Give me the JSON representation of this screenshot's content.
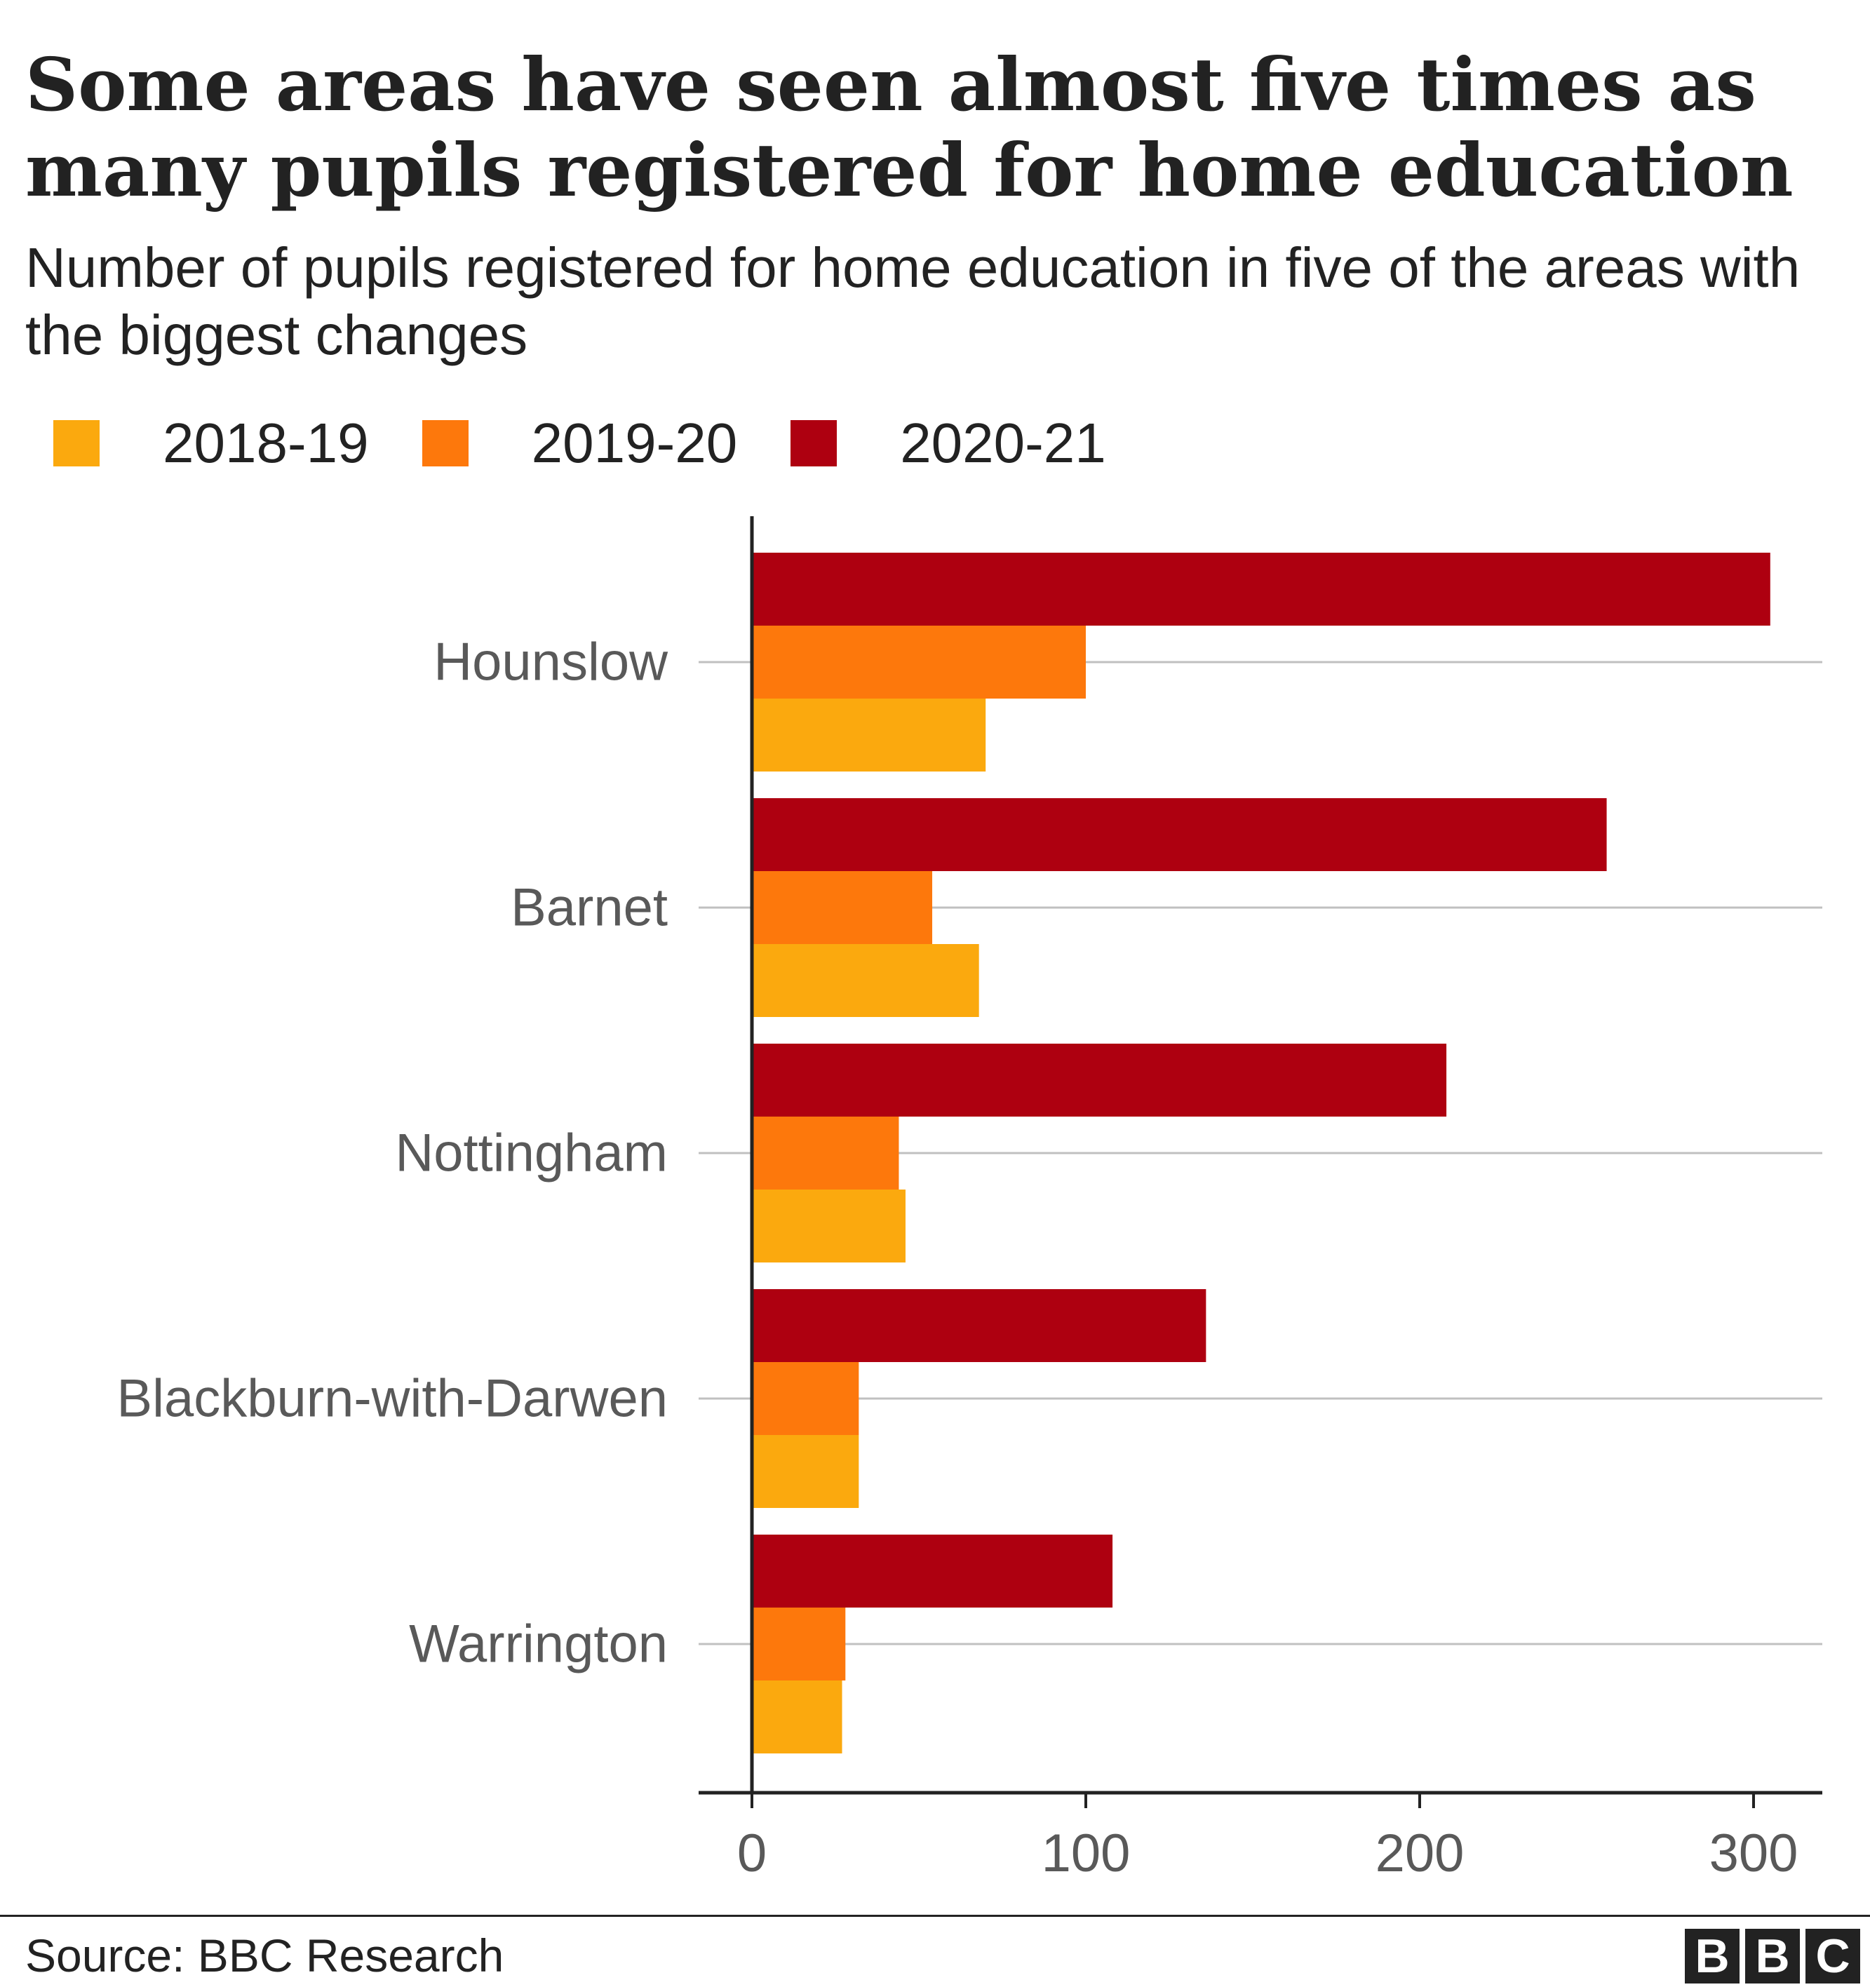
{
  "colors": {
    "2018-19": "#fba90e",
    "2019-20": "#fd780c",
    "2020-21": "#ae0010",
    "text": "#222222",
    "axis_label": "#595959",
    "gridline": "#c0c0c0"
  },
  "chart_data": {
    "type": "bar",
    "orientation": "horizontal",
    "title": "Some areas have seen almost five times as many pupils registered for home education",
    "subtitle": "Number of pupils registered for home education in five of the areas with the biggest changes",
    "categories": [
      "Hounslow",
      "Barnet",
      "Nottingham",
      "Blackburn-with-Darwen",
      "Warrington"
    ],
    "series": [
      {
        "name": "2020-21",
        "color": "#ae0010",
        "values": [
          305,
          256,
          208,
          136,
          108
        ]
      },
      {
        "name": "2019-20",
        "color": "#fd780c",
        "values": [
          100,
          54,
          44,
          32,
          28
        ]
      },
      {
        "name": "2018-19",
        "color": "#fba90e",
        "values": [
          70,
          68,
          46,
          32,
          27
        ]
      }
    ],
    "legend_order": [
      "2018-19",
      "2019-20",
      "2020-21"
    ],
    "xlim": [
      0,
      320
    ],
    "xticks": [
      "0",
      "100",
      "200",
      "300"
    ],
    "xtick_values": [
      0,
      100,
      200,
      300
    ],
    "grid": true,
    "legend_position": "top-left",
    "source": "Source: BBC Research"
  },
  "logo": [
    "B",
    "B",
    "C"
  ]
}
